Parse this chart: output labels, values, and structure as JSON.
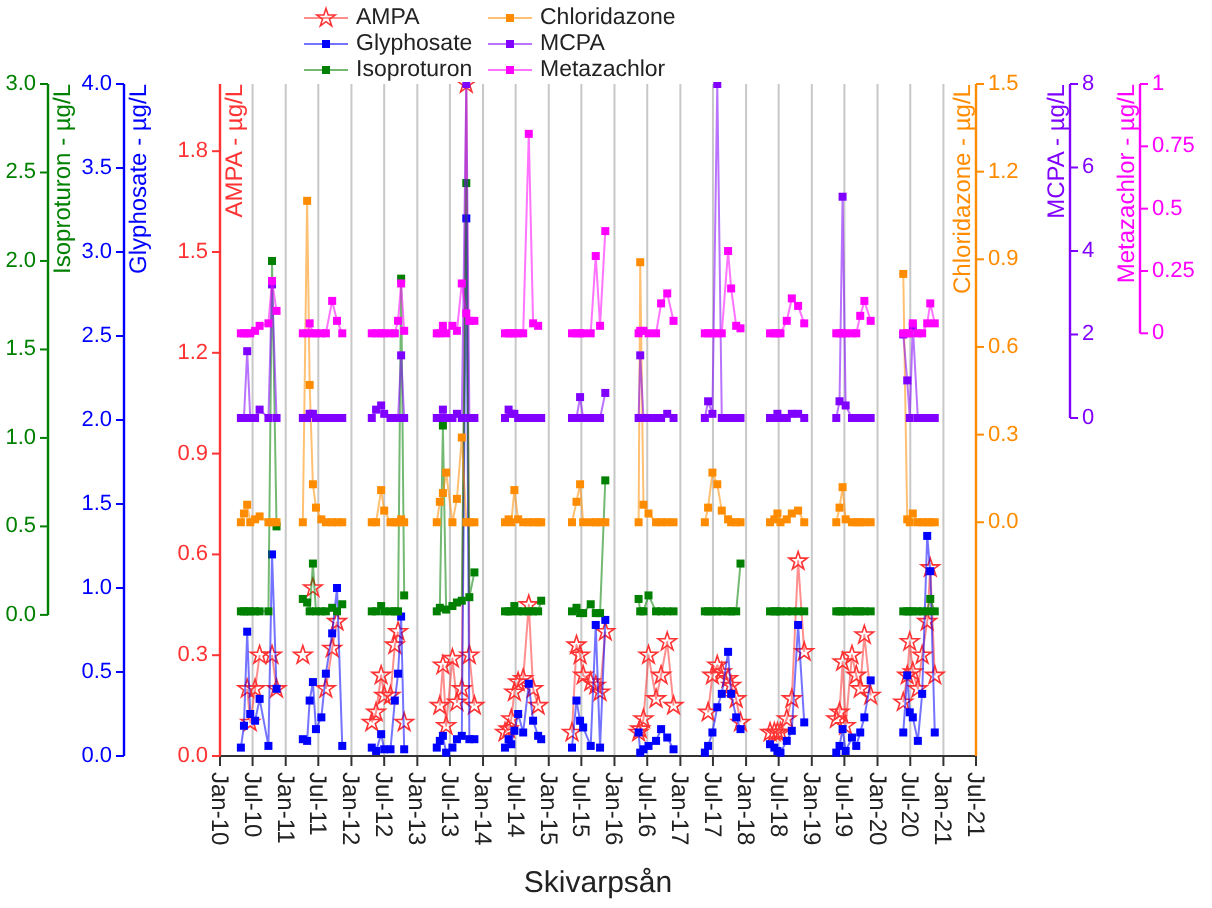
{
  "chart_data": [
    {
      "type": "line",
      "xlabel": "Skivarpsån",
      "ylabel": "AMPA - µg/L",
      "y2label": "Glyphosate - µg/L",
      "y3label": "Isoproturon - µg/L",
      "xlim": [
        "2010-01-01",
        "2021-07-01"
      ],
      "xticks": [
        {
          "value": "2010-01-01",
          "label": "Jan-10"
        },
        {
          "value": "2010-07-01",
          "label": "Jul-10"
        },
        {
          "value": "2011-01-01",
          "label": "Jan-11"
        },
        {
          "value": "2011-07-01",
          "label": "Jul-11"
        },
        {
          "value": "2012-01-01",
          "label": "Jan-12"
        },
        {
          "value": "2012-07-01",
          "label": "Jul-12"
        },
        {
          "value": "2013-01-01",
          "label": "Jan-13"
        },
        {
          "value": "2013-07-01",
          "label": "Jul-13"
        },
        {
          "value": "2014-01-01",
          "label": "Jan-14"
        },
        {
          "value": "2014-07-01",
          "label": "Jul-14"
        },
        {
          "value": "2015-01-01",
          "label": "Jan-15"
        },
        {
          "value": "2015-07-01",
          "label": "Jul-15"
        },
        {
          "value": "2016-01-01",
          "label": "Jan-16"
        },
        {
          "value": "2016-07-01",
          "label": "Jul-16"
        },
        {
          "value": "2017-01-01",
          "label": "Jan-17"
        },
        {
          "value": "2017-07-01",
          "label": "Jul-17"
        },
        {
          "value": "2018-01-01",
          "label": "Jan-18"
        },
        {
          "value": "2018-07-01",
          "label": "Jul-18"
        },
        {
          "value": "2019-01-01",
          "label": "Jan-19"
        },
        {
          "value": "2019-07-01",
          "label": "Jul-19"
        },
        {
          "value": "2020-01-01",
          "label": "Jan-20"
        },
        {
          "value": "2020-07-01",
          "label": "Jul-20"
        },
        {
          "value": "2021-01-01",
          "label": "Jan-21"
        },
        {
          "value": "2021-07-01",
          "label": "Jul-21"
        }
      ],
      "ylim": [
        0,
        2.0
      ],
      "yticks": [
        {
          "value": 0,
          "label": "0.0"
        },
        0.3,
        0.6,
        0.9,
        1.2,
        1.5,
        1.8
      ],
      "y2lim": [
        0,
        4.0
      ],
      "y2ticks": [
        {
          "value": 0,
          "label": "0.0"
        },
        0.5,
        {
          "value": 1,
          "label": "1.0"
        },
        1.5,
        {
          "value": 2,
          "label": "2.0"
        },
        2.5,
        {
          "value": 3,
          "label": "3.0"
        },
        3.5,
        {
          "value": 4,
          "label": "4.0"
        }
      ],
      "y3lim": [
        0,
        3.0
      ],
      "y3ticks": [
        {
          "value": 0,
          "label": "0.0"
        },
        0.5,
        {
          "value": 1,
          "label": "1.0"
        },
        1.5,
        {
          "value": 2,
          "label": "2.0"
        },
        2.5,
        {
          "value": 3,
          "label": "3.0"
        }
      ],
      "grid": "x",
      "legend": "top",
      "x": [
        "2010-04-27",
        "2010-05-14",
        "2010-06-01",
        "2010-06-18",
        "2010-07-15",
        "2010-08-09",
        "2010-09-27",
        "2010-10-17",
        "2010-11-11",
        "2011-01-01",
        "2011-04-06",
        "2011-04-30",
        "2011-05-14",
        "2011-06-01",
        "2011-06-18",
        "2011-07-18",
        "2011-08-12",
        "2011-09-16",
        "2011-10-13",
        "2011-11-11",
        "2012-01-01",
        "2012-04-23",
        "2012-05-17",
        "2012-06-14",
        "2012-07-01",
        "2012-08-05",
        "2012-08-29",
        "2012-09-16",
        "2012-10-03",
        "2012-10-20",
        "2013-01-01",
        "2013-04-19",
        "2013-05-06",
        "2013-05-23",
        "2013-06-10",
        "2013-07-15",
        "2013-08-09",
        "2013-09-05",
        "2013-09-30",
        "2013-10-17",
        "2013-11-14",
        "2014-01-01",
        "2014-05-03",
        "2014-05-23",
        "2014-06-07",
        "2014-06-24",
        "2014-07-15",
        "2014-08-12",
        "2014-09-12",
        "2014-10-06",
        "2014-11-03",
        "2014-11-20",
        "2015-01-01",
        "2015-05-10",
        "2015-06-04",
        "2015-06-24",
        "2015-07-11",
        "2015-08-22",
        "2015-09-19",
        "2015-10-13",
        "2015-11-11",
        "2016-01-01",
        "2016-05-14",
        "2016-05-23",
        "2016-06-10",
        "2016-07-08",
        "2016-08-19",
        "2016-09-16",
        "2016-10-20",
        "2016-11-24",
        "2017-01-01",
        "2017-05-17",
        "2017-06-04",
        "2017-06-28",
        "2017-07-25",
        "2017-08-19",
        "2017-09-23",
        "2017-10-10",
        "2017-11-07",
        "2017-12-01",
        "2018-01-01",
        "2018-05-14",
        "2018-06-07",
        "2018-06-24",
        "2018-07-11",
        "2018-08-15",
        "2018-09-12",
        "2018-10-17",
        "2018-11-20",
        "2019-01-01",
        "2019-05-17",
        "2019-06-04",
        "2019-06-21",
        "2019-07-08",
        "2019-08-12",
        "2019-09-05",
        "2019-09-27",
        "2019-10-20",
        "2019-11-24",
        "2020-01-01",
        "2020-05-23",
        "2020-06-14",
        "2020-06-28",
        "2020-07-15",
        "2020-08-12",
        "2020-09-05",
        "2020-10-03",
        "2020-10-20",
        "2020-11-14"
      ],
      "series": [
        {
          "name": "AMPA",
          "color": "#ff3333",
          "axis": "y",
          "marker": "star",
          "values": [
            null,
            null,
            0.2,
            0.1,
            0.2,
            0.3,
            null,
            0.3,
            0.2,
            null,
            0.3,
            null,
            null,
            0.5,
            null,
            null,
            0.2,
            0.32,
            0.4,
            null,
            null,
            0.1,
            0.13,
            0.24,
            0.18,
            0.18,
            0.33,
            0.37,
            null,
            0.1,
            null,
            null,
            0.15,
            0.27,
            0.09,
            0.29,
            0.16,
            0.2,
            2.0,
            0.3,
            0.15,
            null,
            0.07,
            0.08,
            0.11,
            0.19,
            0.22,
            0.23,
            0.45,
            0.2,
            0.15,
            null,
            null,
            0.07,
            0.33,
            0.3,
            0.24,
            0.22,
            0.21,
            0.19,
            0.37,
            null,
            0.07,
            0.08,
            0.11,
            0.3,
            0.17,
            0.24,
            0.34,
            0.15,
            null,
            null,
            0.13,
            0.24,
            0.27,
            0.25,
            0.23,
            0.21,
            0.17,
            0.1,
            null,
            0.07,
            0.07,
            0.07,
            0.07,
            0.11,
            0.17,
            0.58,
            0.31,
            null,
            0.11,
            0.13,
            0.28,
            0.09,
            0.3,
            0.24,
            0.2,
            0.36,
            0.18,
            null,
            0.16,
            0.24,
            0.34,
            0.25,
            0.2,
            0.3,
            0.4,
            0.56,
            0.24
          ]
        },
        {
          "name": "Glyphosate",
          "color": "#0000ff",
          "axis": "y2",
          "marker": "square",
          "values": [
            0.05,
            0.18,
            0.74,
            0.25,
            0.21,
            0.34,
            0.06,
            1.2,
            0.4,
            null,
            0.1,
            0.09,
            0.33,
            0.44,
            0.16,
            0.23,
            0.49,
            0.73,
            1.0,
            0.06,
            null,
            0.05,
            0.03,
            0.13,
            0.04,
            0.04,
            0.33,
            0.49,
            0.83,
            0.04,
            null,
            0.05,
            0.09,
            0.12,
            0.02,
            0.05,
            0.1,
            0.12,
            3.2,
            0.1,
            0.1,
            null,
            0.05,
            0.1,
            0.07,
            0.15,
            0.25,
            0.14,
            0.43,
            0.21,
            0.12,
            0.1,
            null,
            0.05,
            0.33,
            0.21,
            0.17,
            0.06,
            0.78,
            0.05,
            0.81,
            null,
            0.14,
            0.02,
            0.04,
            0.06,
            0.09,
            0.16,
            0.11,
            0.04,
            null,
            0.02,
            0.06,
            0.14,
            0.29,
            0.37,
            0.62,
            0.37,
            0.23,
            0.16,
            null,
            0.07,
            0.05,
            0.03,
            0.02,
            0.09,
            0.15,
            0.78,
            0.2,
            null,
            0.02,
            0.06,
            0.16,
            0.03,
            0.11,
            0.06,
            0.14,
            0.23,
            0.45,
            null,
            0.14,
            0.48,
            0.26,
            0.23,
            0.09,
            0.37,
            1.31,
            1.1,
            0.14
          ]
        },
        {
          "name": "Isoproturon",
          "color": "#008000",
          "axis": "y3",
          "marker": "square",
          "values": [
            0.02,
            0.02,
            0.02,
            0.02,
            0.02,
            0.02,
            0.02,
            2.0,
            0.5,
            null,
            0.09,
            0.07,
            0.02,
            0.29,
            0.02,
            0.02,
            0.02,
            0.04,
            0.02,
            0.06,
            null,
            0.02,
            0.02,
            0.05,
            0.02,
            0.02,
            0.02,
            0.02,
            1.9,
            0.11,
            null,
            0.02,
            0.04,
            1.07,
            0.03,
            0.05,
            0.07,
            0.08,
            2.44,
            0.1,
            0.24,
            null,
            0.02,
            0.02,
            0.02,
            0.05,
            0.02,
            0.02,
            0.02,
            0.02,
            0.02,
            0.08,
            null,
            0.02,
            0.04,
            0.01,
            0.01,
            0.06,
            0.01,
            0.01,
            0.76,
            null,
            0.09,
            0.02,
            0.02,
            0.11,
            0.02,
            0.02,
            0.02,
            0.02,
            null,
            0.02,
            0.02,
            0.02,
            0.02,
            0.02,
            0.02,
            0.02,
            0.02,
            0.29,
            null,
            0.02,
            0.02,
            0.02,
            0.02,
            0.02,
            0.02,
            0.02,
            0.02,
            null,
            0.02,
            0.02,
            0.02,
            0.02,
            0.02,
            0.02,
            0.02,
            0.02,
            0.02,
            null,
            0.02,
            0.02,
            0.02,
            0.02,
            0.02,
            0.02,
            0.02,
            0.09,
            0.02
          ]
        }
      ]
    },
    {
      "type": "line",
      "tick_labels": "y",
      "ylabel": "Chloridazone - µg/L",
      "y2label": "MCPA - µg/L",
      "y3label": "Metazachlor - µg/L",
      "xlim": [
        "2010-01-01",
        "2021-07-01"
      ],
      "ylim": [
        -0.8,
        1.5
      ],
      "yticks": [
        {
          "value": 0,
          "label": "0.0"
        },
        0.3,
        0.6,
        0.9,
        1.2,
        1.5
      ],
      "y2lim": [
        0,
        8
      ],
      "y2ticks": [
        0,
        2,
        4,
        6,
        8
      ],
      "y3lim": [
        0,
        1
      ],
      "y3ticks": [
        0,
        0.25,
        0.5,
        0.75,
        1
      ],
      "legend": "top",
      "x": [
        "2010-04-27",
        "2010-05-14",
        "2010-06-01",
        "2010-06-18",
        "2010-07-15",
        "2010-08-09",
        "2010-09-27",
        "2010-10-17",
        "2010-11-11",
        "2011-01-01",
        "2011-04-06",
        "2011-04-30",
        "2011-05-14",
        "2011-06-01",
        "2011-06-18",
        "2011-07-18",
        "2011-08-12",
        "2011-09-16",
        "2011-10-13",
        "2011-11-11",
        "2012-01-01",
        "2012-04-23",
        "2012-05-17",
        "2012-06-14",
        "2012-07-01",
        "2012-08-05",
        "2012-08-29",
        "2012-09-16",
        "2012-10-03",
        "2012-10-20",
        "2013-01-01",
        "2013-04-19",
        "2013-05-06",
        "2013-05-23",
        "2013-06-10",
        "2013-07-15",
        "2013-08-09",
        "2013-09-05",
        "2013-09-30",
        "2013-10-17",
        "2013-11-14",
        "2014-01-01",
        "2014-05-03",
        "2014-05-23",
        "2014-06-07",
        "2014-06-24",
        "2014-07-15",
        "2014-08-12",
        "2014-09-12",
        "2014-10-06",
        "2014-11-03",
        "2014-11-20",
        "2015-01-01",
        "2015-05-10",
        "2015-06-04",
        "2015-06-24",
        "2015-07-11",
        "2015-08-22",
        "2015-09-19",
        "2015-10-13",
        "2015-11-11",
        "2016-01-01",
        "2016-05-14",
        "2016-05-23",
        "2016-06-10",
        "2016-07-08",
        "2016-08-19",
        "2016-09-16",
        "2016-10-20",
        "2016-11-24",
        "2017-01-01",
        "2017-05-17",
        "2017-06-04",
        "2017-06-28",
        "2017-07-25",
        "2017-08-19",
        "2017-09-23",
        "2017-10-10",
        "2017-11-07",
        "2017-12-01",
        "2018-01-01",
        "2018-05-14",
        "2018-06-07",
        "2018-06-24",
        "2018-07-11",
        "2018-08-15",
        "2018-09-12",
        "2018-10-17",
        "2018-11-20",
        "2019-01-01",
        "2019-05-17",
        "2019-06-04",
        "2019-06-21",
        "2019-07-08",
        "2019-08-12",
        "2019-09-05",
        "2019-09-27",
        "2019-10-20",
        "2019-11-24",
        "2020-01-01",
        "2020-05-23",
        "2020-06-14",
        "2020-06-28",
        "2020-07-15",
        "2020-08-12",
        "2020-09-05",
        "2020-10-03",
        "2020-10-20",
        "2020-11-14"
      ],
      "series": [
        {
          "name": "Chloridazone",
          "color": "#ff8c00",
          "axis": "y",
          "marker": "square",
          "values": [
            0,
            0.03,
            0.06,
            0,
            0.01,
            0.02,
            0,
            0,
            0,
            null,
            0,
            1.1,
            0.47,
            0.13,
            0.05,
            0.01,
            0,
            0,
            0,
            0,
            null,
            0,
            0,
            0.11,
            0.04,
            0,
            0,
            0,
            0.01,
            0,
            null,
            0,
            0.07,
            0.1,
            0.17,
            0,
            0.08,
            0.29,
            0,
            0,
            0,
            null,
            0,
            0.01,
            0,
            0.11,
            0.01,
            0,
            0,
            0,
            0,
            0,
            null,
            0,
            0.07,
            0.13,
            0,
            0,
            0,
            0,
            0,
            null,
            0,
            0.89,
            0.06,
            0.03,
            0,
            0,
            0,
            0,
            null,
            0,
            0.05,
            0.17,
            0.13,
            0.04,
            0.01,
            0,
            0,
            0,
            null,
            0,
            0.01,
            0.03,
            0,
            0.01,
            0.03,
            0.04,
            0,
            null,
            0,
            0.05,
            0.12,
            0.01,
            0,
            0,
            0,
            0,
            0,
            null,
            0.85,
            0.01,
            0,
            0.03,
            0,
            0,
            0,
            0,
            0
          ]
        },
        {
          "name": "MCPA",
          "color": "#8000ff",
          "axis": "y2",
          "marker": "square",
          "values": [
            0,
            0,
            1.6,
            0,
            0,
            0.2,
            0,
            3.2,
            0,
            null,
            0,
            0,
            0.1,
            0.1,
            0,
            0,
            0,
            0,
            0,
            0,
            null,
            0,
            0.2,
            0.3,
            0.1,
            0,
            0,
            0,
            1.5,
            0,
            null,
            0,
            0,
            0.2,
            0,
            0,
            0.1,
            0,
            8,
            0,
            0,
            null,
            0,
            0.2,
            0.1,
            0.1,
            0,
            0,
            0,
            0,
            0,
            0,
            null,
            0,
            0,
            0.5,
            0,
            0,
            0,
            0,
            0.6,
            null,
            0,
            1.5,
            0,
            0,
            0,
            0,
            0.1,
            0,
            null,
            0,
            0.4,
            0.1,
            8,
            0,
            0,
            0,
            0,
            0,
            null,
            0,
            0,
            0.1,
            0,
            0,
            0.1,
            0.1,
            0,
            null,
            0,
            0.4,
            5.3,
            0.3,
            0,
            0,
            0,
            0,
            0,
            null,
            2.0,
            0.9,
            0,
            2.2,
            0,
            0,
            0,
            0,
            0
          ]
        },
        {
          "name": "Metazachlor",
          "color": "#ff00ff",
          "axis": "y3",
          "marker": "square",
          "values": [
            0,
            0,
            0,
            0,
            0.01,
            0.03,
            0.04,
            0.21,
            0.09,
            null,
            0,
            0,
            0.04,
            0,
            0,
            0,
            0,
            0.13,
            0.05,
            0,
            null,
            0,
            0,
            0,
            0,
            0,
            0,
            0.05,
            0.2,
            0.01,
            null,
            0,
            0,
            0.03,
            0,
            0.03,
            0.01,
            0.2,
            0.08,
            0.05,
            0.05,
            null,
            0,
            0,
            0,
            0,
            0,
            0,
            0.8,
            0.04,
            0.03,
            null,
            null,
            0,
            0,
            0,
            0,
            0,
            0.31,
            0.03,
            0.41,
            null,
            0,
            0.01,
            0.01,
            0,
            0,
            0.12,
            0.16,
            0.05,
            null,
            0,
            0,
            0,
            0,
            0,
            0.33,
            0.18,
            0.03,
            0.02,
            null,
            0,
            0,
            0,
            0,
            0.05,
            0.14,
            0.11,
            0.04,
            null,
            0,
            0,
            0,
            0,
            0,
            0,
            0.07,
            0.13,
            0.05,
            null,
            0,
            0,
            0,
            0.04,
            0,
            0,
            0.04,
            0.12,
            0.04
          ]
        }
      ]
    }
  ]
}
